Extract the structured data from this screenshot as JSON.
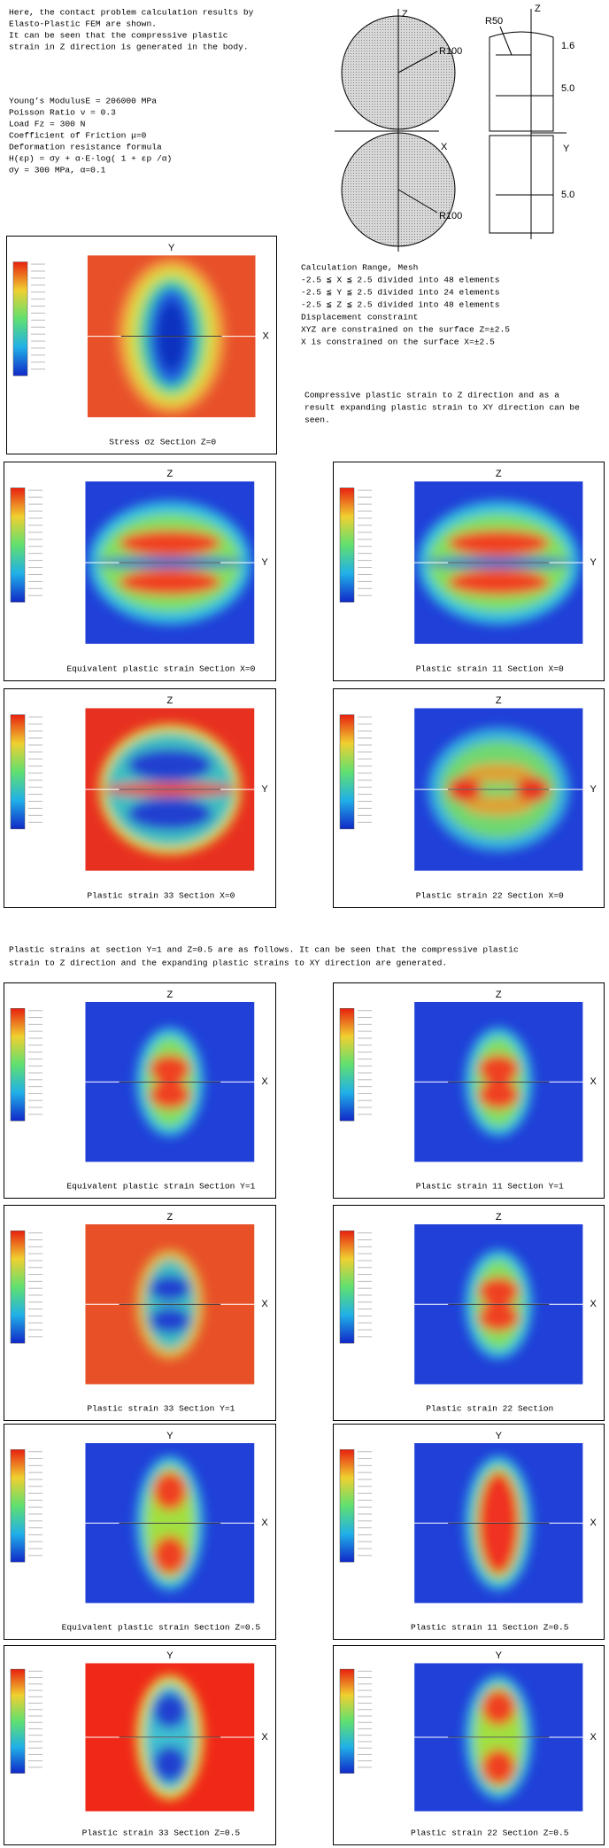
{
  "intro": [
    "Here, the contact problem calculation results by",
    "Elasto-Plastic FEM are shown.",
    "It can be seen that the compressive plastic",
    "strain in Z direction is generated in the body."
  ],
  "material": [
    "Young’s ModulusE = 206000  MPa",
    "Poisson Ratio  ν = 0.3",
    "Load    Fz = 300     N",
    "Coefficient of Friction μ=0",
    "Deformation resistance formula",
    "  H(εp) = σy + α·E·log( 1 + εp /α)",
    "σy = 300 MPa, α=0.1"
  ],
  "diagram": {
    "z_left": "Z",
    "x_left": "X",
    "r_upper": "R100",
    "r_lower": "R100",
    "z_right": "Z",
    "y_right": "Y",
    "r50": "R50",
    "dim1": "1.6",
    "dim2": "5.0",
    "dim3": "5.0"
  },
  "calc": [
    "Calculation Range, Mesh",
    "  -2.5 ≦ X ≦ 2.5   divided into 48 elements",
    "  -2.5 ≦ Y ≦ 2.5   divided into 24 elements",
    "  -2.5 ≦ Z ≦ 2.5   divided into 48 elements",
    "Displacement constraint",
    "    XYZ are constrained on the surface Z=±2.5",
    "    X is constrained on the surface X=±2.5"
  ],
  "note": [
    "Compressive plastic strain to Z direction and as a",
    "result expanding plastic strain to XY direction can be",
    "seen."
  ],
  "section2": [
    "Plastic strains at section Y=1 and Z=0.5 are as follows. It can be seen that the compressive plastic",
    "strain to Z direction and the expanding plastic strains to XY direction are generated."
  ],
  "panels": [
    {
      "caption": "Stress σz  Section Z=0",
      "top": "Y",
      "right": "X"
    },
    {
      "caption": "Equivalent plastic strain Section X=0",
      "top": "Z",
      "right": "Y"
    },
    {
      "caption": "Plastic strain 11 Section X=0",
      "top": "Z",
      "right": "Y"
    },
    {
      "caption": "Plastic strain 33 Section X=0",
      "top": "Z",
      "right": "Y"
    },
    {
      "caption": "Plastic strain 22 Section X=0",
      "top": "Z",
      "right": "Y"
    },
    {
      "caption": "Equivalent plastic strain Section Y=1",
      "top": "Z",
      "right": "X"
    },
    {
      "caption": "Plastic strain 11 Section Y=1",
      "top": "Z",
      "right": "X"
    },
    {
      "caption": "Plastic strain 33 Section Y=1",
      "top": "Z",
      "right": "X"
    },
    {
      "caption": "Plastic strain 22 Section",
      "top": "Z",
      "right": "X"
    },
    {
      "caption": "Equivalent plastic strain Section Z=0.5",
      "top": "Y",
      "right": "X"
    },
    {
      "caption": "Plastic strain 11 Section Z=0.5",
      "top": "Y",
      "right": "X"
    },
    {
      "caption": "Plastic strain 33 Section Z=0.5",
      "top": "Y",
      "right": "X"
    },
    {
      "caption": "Plastic strain 22 Section Z=0.5",
      "top": "Y",
      "right": "X"
    }
  ]
}
